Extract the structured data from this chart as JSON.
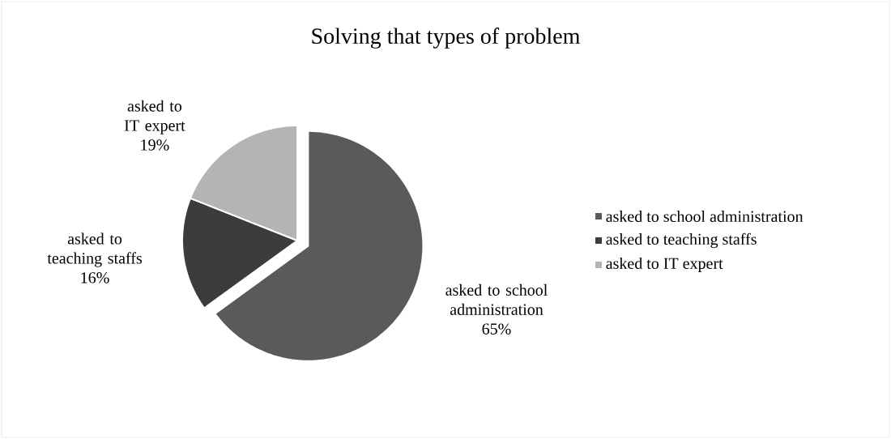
{
  "chart_data": {
    "type": "pie",
    "title": "Solving that types of problem",
    "categories": [
      "asked to school administration",
      "asked to teaching staffs",
      "asked to IT expert"
    ],
    "values": [
      65,
      16,
      19
    ],
    "value_labels": [
      "65%",
      "16%",
      "19%"
    ],
    "colors": [
      "#5a5a5a",
      "#3c3c3c",
      "#b4b4b4"
    ],
    "legend": "right"
  }
}
